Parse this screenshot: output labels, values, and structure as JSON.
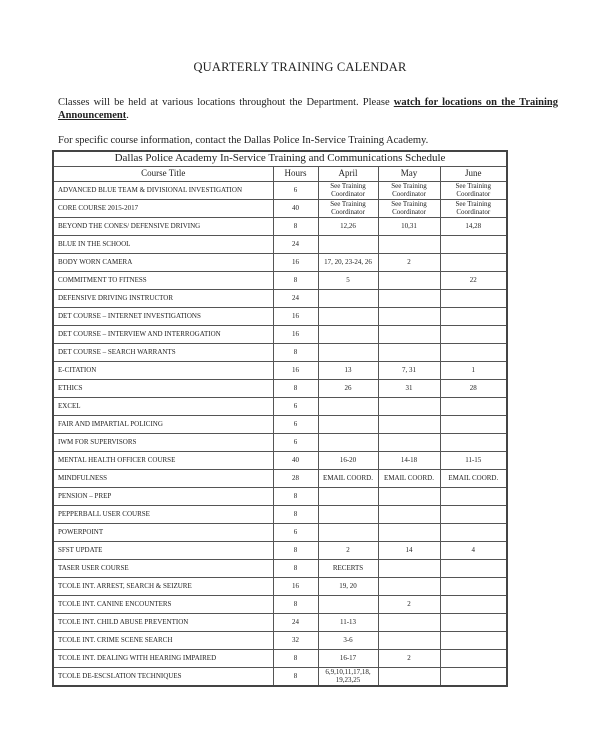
{
  "title": "QUARTERLY TRAINING CALENDAR",
  "intro": {
    "text": "Classes will be held at various locations throughout the Department. Please ",
    "emphasis": "watch for locations on the Training Announcement",
    "end": "."
  },
  "contact": "For specific course information, contact the Dallas Police In-Service Training Academy.",
  "table": {
    "caption": "Dallas Police Academy  In-Service Training and Communications Schedule",
    "headers": [
      "Course Title",
      "Hours",
      "April",
      "May",
      "June"
    ],
    "rows": [
      [
        "ADVANCED BLUE TEAM & DIVISIONAL INVESTIGATION",
        "6",
        "See Training Coordinator",
        "See Training Coordinator",
        "See Training Coordinator"
      ],
      [
        "CORE COURSE 2015-2017",
        "40",
        "See Training Coordinator",
        "See Training Coordinator",
        "See Training Coordinator"
      ],
      [
        "BEYOND THE CONES/ DEFENSIVE DRIVING",
        "8",
        "12,26",
        "10,31",
        "14,28"
      ],
      [
        "BLUE IN THE SCHOOL",
        "24",
        "",
        "",
        ""
      ],
      [
        "BODY WORN CAMERA",
        "16",
        "17, 20, 23-24, 26",
        "2",
        ""
      ],
      [
        "COMMITMENT TO FITNESS",
        "8",
        "5",
        "",
        "22"
      ],
      [
        "DEFENSIVE DRIVING INSTRUCTOR",
        "24",
        "",
        "",
        ""
      ],
      [
        "DET COURSE – INTERNET INVESTIGATIONS",
        "16",
        "",
        "",
        ""
      ],
      [
        "DET COURSE – INTERVIEW AND INTERROGATION",
        "16",
        "",
        "",
        ""
      ],
      [
        "DET COURSE – SEARCH WARRANTS",
        "8",
        "",
        "",
        ""
      ],
      [
        "E-CITATION",
        "16",
        "13",
        "7, 31",
        "1"
      ],
      [
        "ETHICS",
        "8",
        "26",
        "31",
        "28"
      ],
      [
        "EXCEL",
        "6",
        "",
        "",
        ""
      ],
      [
        "FAIR AND IMPARTIAL POLICING",
        "6",
        "",
        "",
        ""
      ],
      [
        "IWM FOR SUPERVISORS",
        "6",
        "",
        "",
        ""
      ],
      [
        "MENTAL HEALTH OFFICER COURSE",
        "40",
        "16-20",
        "14-18",
        "11-15"
      ],
      [
        "MINDFULNESS",
        "28",
        "EMAIL COORD.",
        "EMAIL COORD.",
        "EMAIL COORD."
      ],
      [
        "PENSION – PREP",
        "8",
        "",
        "",
        ""
      ],
      [
        "PEPPERBALL USER COURSE",
        "8",
        "",
        "",
        ""
      ],
      [
        "POWERPOINT",
        "6",
        "",
        "",
        ""
      ],
      [
        "SFST UPDATE",
        "8",
        "2",
        "14",
        "4"
      ],
      [
        "TASER USER COURSE",
        "8",
        "RECERTS",
        "",
        ""
      ],
      [
        "TCOLE INT. ARREST, SEARCH & SEIZURE",
        "16",
        "19, 20",
        "",
        ""
      ],
      [
        "TCOLE INT. CANINE ENCOUNTERS",
        "8",
        "",
        "2",
        ""
      ],
      [
        "TCOLE INT. CHILD ABUSE PREVENTION",
        "24",
        "11-13",
        "",
        ""
      ],
      [
        "TCOLE INT.  CRIME SCENE SEARCH",
        "32",
        "3-6",
        "",
        ""
      ],
      [
        "TCOLE INT. DEALING WITH HEARING IMPAIRED",
        "8",
        "16-17",
        "2",
        ""
      ],
      [
        "TCOLE DE-ESCSLATION TECHNIQUES",
        "8",
        "6,9,10,11,17,18, 19,23,25",
        "",
        ""
      ]
    ]
  }
}
